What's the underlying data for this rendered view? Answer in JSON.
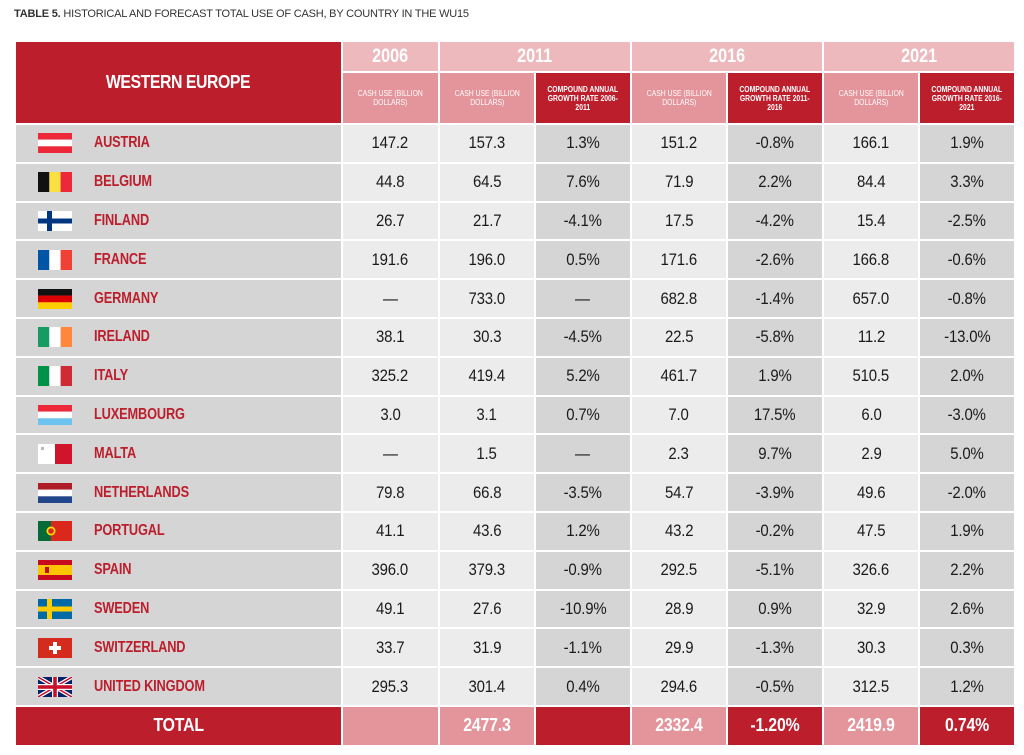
{
  "caption": {
    "bold": "TABLE 5.",
    "text": " HISTORICAL AND FORECAST TOTAL USE OF CASH, BY COUNTRY IN THE WU15"
  },
  "header": {
    "region": "WESTERN EUROPE",
    "years": [
      "2006",
      "2011",
      "2016",
      "2021"
    ],
    "cash_use_label": "CASH USE (BILLION DOLLARS)",
    "growth_labels": [
      "COMPOUND ANNUAL GROWTH RATE 2006-2011",
      "COMPOUND ANNUAL GROWTH RATE 2011-2016",
      "COMPOUND ANNUAL GROWTH RATE 2016-2021"
    ]
  },
  "rows": [
    {
      "country": "AUSTRIA",
      "flag": "austria-flag-icon",
      "v2006": "147.2",
      "v2011": "157.3",
      "g2011": "1.3%",
      "v2016": "151.2",
      "g2016": "-0.8%",
      "v2021": "166.1",
      "g2021": "1.9%"
    },
    {
      "country": "BELGIUM",
      "flag": "belgium-flag-icon",
      "v2006": "44.8",
      "v2011": "64.5",
      "g2011": "7.6%",
      "v2016": "71.9",
      "g2016": "2.2%",
      "v2021": "84.4",
      "g2021": "3.3%"
    },
    {
      "country": "FINLAND",
      "flag": "finland-flag-icon",
      "v2006": "26.7",
      "v2011": "21.7",
      "g2011": "-4.1%",
      "v2016": "17.5",
      "g2016": "-4.2%",
      "v2021": "15.4",
      "g2021": "-2.5%"
    },
    {
      "country": "FRANCE",
      "flag": "france-flag-icon",
      "v2006": "191.6",
      "v2011": "196.0",
      "g2011": "0.5%",
      "v2016": "171.6",
      "g2016": "-2.6%",
      "v2021": "166.8",
      "g2021": "-0.6%"
    },
    {
      "country": "GERMANY",
      "flag": "germany-flag-icon",
      "v2006": "—",
      "v2011": "733.0",
      "g2011": "—",
      "v2016": "682.8",
      "g2016": "-1.4%",
      "v2021": "657.0",
      "g2021": "-0.8%"
    },
    {
      "country": "IRELAND",
      "flag": "ireland-flag-icon",
      "v2006": "38.1",
      "v2011": "30.3",
      "g2011": "-4.5%",
      "v2016": "22.5",
      "g2016": "-5.8%",
      "v2021": "11.2",
      "g2021": "-13.0%"
    },
    {
      "country": "ITALY",
      "flag": "italy-flag-icon",
      "v2006": "325.2",
      "v2011": "419.4",
      "g2011": "5.2%",
      "v2016": "461.7",
      "g2016": "1.9%",
      "v2021": "510.5",
      "g2021": "2.0%"
    },
    {
      "country": "LUXEMBOURG",
      "flag": "luxembourg-flag-icon",
      "v2006": "3.0",
      "v2011": "3.1",
      "g2011": "0.7%",
      "v2016": "7.0",
      "g2016": "17.5%",
      "v2021": "6.0",
      "g2021": "-3.0%"
    },
    {
      "country": "MALTA",
      "flag": "malta-flag-icon",
      "v2006": "—",
      "v2011": "1.5",
      "g2011": "—",
      "v2016": "2.3",
      "g2016": "9.7%",
      "v2021": "2.9",
      "g2021": "5.0%"
    },
    {
      "country": "NETHERLANDS",
      "flag": "netherlands-flag-icon",
      "v2006": "79.8",
      "v2011": "66.8",
      "g2011": "-3.5%",
      "v2016": "54.7",
      "g2016": "-3.9%",
      "v2021": "49.6",
      "g2021": "-2.0%"
    },
    {
      "country": "PORTUGAL",
      "flag": "portugal-flag-icon",
      "v2006": "41.1",
      "v2011": "43.6",
      "g2011": "1.2%",
      "v2016": "43.2",
      "g2016": "-0.2%",
      "v2021": "47.5",
      "g2021": "1.9%"
    },
    {
      "country": "SPAIN",
      "flag": "spain-flag-icon",
      "v2006": "396.0",
      "v2011": "379.3",
      "g2011": "-0.9%",
      "v2016": "292.5",
      "g2016": "-5.1%",
      "v2021": "326.6",
      "g2021": "2.2%"
    },
    {
      "country": "SWEDEN",
      "flag": "sweden-flag-icon",
      "v2006": "49.1",
      "v2011": "27.6",
      "g2011": "-10.9%",
      "v2016": "28.9",
      "g2016": "0.9%",
      "v2021": "32.9",
      "g2021": "2.6%"
    },
    {
      "country": "SWITZERLAND",
      "flag": "switzerland-flag-icon",
      "v2006": "33.7",
      "v2011": "31.9",
      "g2011": "-1.1%",
      "v2016": "29.9",
      "g2016": "-1.3%",
      "v2021": "30.3",
      "g2021": "0.3%"
    },
    {
      "country": "UNITED KINGDOM",
      "flag": "uk-flag-icon",
      "v2006": "295.3",
      "v2011": "301.4",
      "g2011": "0.4%",
      "v2016": "294.6",
      "g2016": "-0.5%",
      "v2021": "312.5",
      "g2021": "1.2%"
    }
  ],
  "total": {
    "label": "TOTAL",
    "v2006": "",
    "v2011": "2477.3",
    "g2011": "",
    "v2016": "2332.4",
    "g2016": "-1.20%",
    "v2021": "2419.9",
    "g2021": "0.74%"
  },
  "colors": {
    "brand_red": "#bd1e2c",
    "header_pink": "#e4949b",
    "header_light_pink": "#eeb9bd",
    "row_grey": "#d5d5d6",
    "row_light": "#ececed"
  }
}
